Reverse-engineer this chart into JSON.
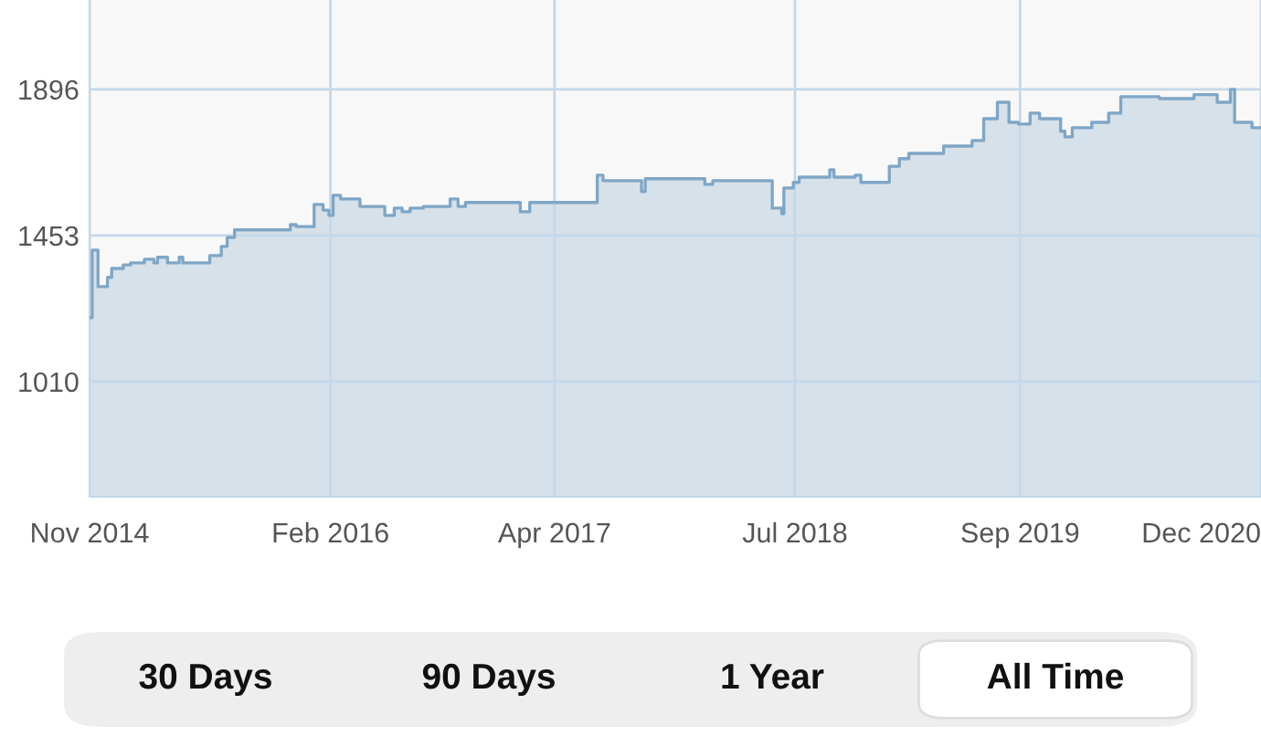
{
  "chart_data": {
    "type": "area",
    "x": [
      "2014-11-01",
      "2014-11-06",
      "2014-11-06",
      "2014-11-17",
      "2014-11-17",
      "2014-12-05",
      "2014-12-05",
      "2014-12-13",
      "2014-12-13",
      "2015-01-04",
      "2015-01-04",
      "2015-01-18",
      "2015-01-18",
      "2015-02-13",
      "2015-02-13",
      "2015-03-03",
      "2015-03-03",
      "2015-03-10",
      "2015-03-10",
      "2015-03-29",
      "2015-03-29",
      "2015-04-20",
      "2015-04-20",
      "2015-04-27",
      "2015-04-27",
      "2015-06-17",
      "2015-06-17",
      "2015-07-09",
      "2015-07-09",
      "2015-07-20",
      "2015-07-20",
      "2015-08-03",
      "2015-08-03",
      "2015-11-17",
      "2015-11-17",
      "2015-11-28",
      "2015-11-28",
      "2016-01-01",
      "2016-01-01",
      "2016-01-18",
      "2016-01-18",
      "2016-01-29",
      "2016-01-29",
      "2016-02-06",
      "2016-02-06",
      "2016-02-20",
      "2016-02-20",
      "2016-03-28",
      "2016-03-28",
      "2016-05-14",
      "2016-05-14",
      "2016-06-01",
      "2016-06-01",
      "2016-06-16",
      "2016-06-16",
      "2016-07-01",
      "2016-07-01",
      "2016-07-26",
      "2016-07-26",
      "2016-09-15",
      "2016-09-15",
      "2016-09-30",
      "2016-09-30",
      "2016-10-14",
      "2016-10-14",
      "2017-01-26",
      "2017-01-26",
      "2017-02-13",
      "2017-02-13",
      "2017-06-21",
      "2017-06-21",
      "2017-07-02",
      "2017-07-02",
      "2017-09-13",
      "2017-09-13",
      "2017-09-20",
      "2017-09-20",
      "2018-01-11",
      "2018-01-11",
      "2018-01-26",
      "2018-01-26",
      "2018-05-19",
      "2018-05-19",
      "2018-06-06",
      "2018-06-06",
      "2018-06-10",
      "2018-06-10",
      "2018-06-28",
      "2018-06-28",
      "2018-07-09",
      "2018-07-09",
      "2018-09-05",
      "2018-09-05",
      "2018-09-13",
      "2018-09-13",
      "2018-10-23",
      "2018-10-23",
      "2018-11-03",
      "2018-11-03",
      "2018-12-27",
      "2018-12-27",
      "2019-01-15",
      "2019-01-15",
      "2019-02-02",
      "2019-02-02",
      "2019-04-09",
      "2019-04-09",
      "2019-06-02",
      "2019-06-02",
      "2019-06-24",
      "2019-06-24",
      "2019-07-20",
      "2019-07-20",
      "2019-08-11",
      "2019-08-11",
      "2019-08-29",
      "2019-08-29",
      "2019-09-20",
      "2019-09-20",
      "2019-10-08",
      "2019-10-08",
      "2019-11-17",
      "2019-11-17",
      "2019-11-25",
      "2019-11-25",
      "2019-12-09",
      "2019-12-09",
      "2020-01-15",
      "2020-01-15",
      "2020-02-16",
      "2020-02-16",
      "2020-03-10",
      "2020-03-10",
      "2020-05-22",
      "2020-05-22",
      "2020-07-27",
      "2020-07-27",
      "2020-09-09",
      "2020-09-09",
      "2020-10-04",
      "2020-10-04",
      "2020-10-12",
      "2020-10-12",
      "2020-11-14",
      "2020-11-14",
      "2020-12-01"
    ],
    "series": [
      {
        "color": "#7fa6c6",
        "values": [
          1204,
          1204,
          1409,
          1409,
          1298,
          1298,
          1326,
          1326,
          1353,
          1353,
          1364,
          1364,
          1370,
          1370,
          1381,
          1381,
          1370,
          1370,
          1387,
          1387,
          1370,
          1370,
          1387,
          1387,
          1370,
          1370,
          1392,
          1392,
          1420,
          1420,
          1447,
          1447,
          1470,
          1470,
          1486,
          1486,
          1480,
          1480,
          1547,
          1547,
          1530,
          1530,
          1514,
          1514,
          1575,
          1575,
          1564,
          1564,
          1541,
          1541,
          1514,
          1514,
          1536,
          1536,
          1525,
          1525,
          1536,
          1536,
          1541,
          1541,
          1564,
          1564,
          1541,
          1541,
          1553,
          1553,
          1525,
          1525,
          1553,
          1553,
          1636,
          1636,
          1619,
          1619,
          1586,
          1586,
          1625,
          1625,
          1608,
          1608,
          1619,
          1619,
          1536,
          1536,
          1519,
          1519,
          1597,
          1597,
          1614,
          1614,
          1630,
          1630,
          1652,
          1652,
          1630,
          1630,
          1636,
          1636,
          1614,
          1614,
          1663,
          1663,
          1686,
          1686,
          1702,
          1702,
          1724,
          1724,
          1741,
          1741,
          1807,
          1807,
          1857,
          1857,
          1796,
          1796,
          1791,
          1791,
          1824,
          1824,
          1807,
          1807,
          1769,
          1769,
          1752,
          1752,
          1780,
          1780,
          1796,
          1796,
          1824,
          1824,
          1874,
          1874,
          1868,
          1868,
          1880,
          1880,
          1857,
          1857,
          1896,
          1896,
          1796,
          1796,
          1780,
          1780
        ]
      }
    ],
    "xlim": [
      "2014-11-01",
      "2020-12-01"
    ],
    "xticks": [
      {
        "value": "2014-11-01",
        "label": "Nov 2014"
      },
      {
        "value": "2016-02-01",
        "label": "Feb 2016"
      },
      {
        "value": "2017-04-01",
        "label": "Apr 2017"
      },
      {
        "value": "2018-07-01",
        "label": "Jul 2018"
      },
      {
        "value": "2019-09-01",
        "label": "Sep 2019"
      },
      {
        "value": "2020-12-01",
        "label": "Dec 2020"
      }
    ],
    "ylim": [
      661,
      2167
    ],
    "yticks": [
      1010,
      1453,
      1896
    ],
    "grid": true,
    "annotations": [
      "30 Days",
      "90 Days",
      "1 Year",
      "All Time"
    ]
  }
}
